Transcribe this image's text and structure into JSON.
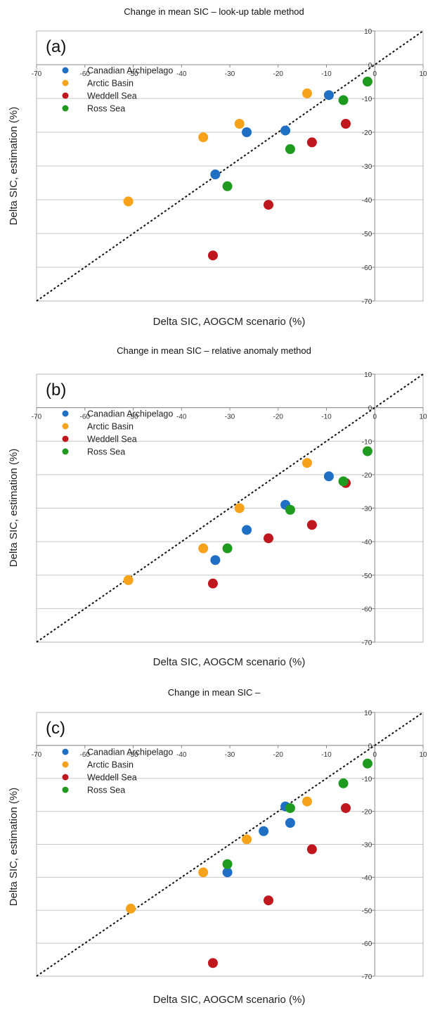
{
  "colors": {
    "canadian": "#1f6fc5",
    "arctic": "#f7a21b",
    "weddell": "#c0161e",
    "ross": "#1e9a1e",
    "grid": "#c8c8c8",
    "frame": "#b4b4b4",
    "diagonal": "#111111"
  },
  "chart_data": [
    {
      "type": "scatter",
      "panel_label": "(a)",
      "title": "Change in mean SIC –  look-up table method",
      "xlabel": "Delta SIC, AOGCM scenario (%)",
      "ylabel": "Delta SIC, estimation (%)",
      "xlim": [
        -70,
        10
      ],
      "ylim": [
        -70,
        10
      ],
      "xticks": [
        "-70",
        "-60",
        "-50",
        "-40",
        "-30",
        "-20",
        "-10",
        "0",
        "10"
      ],
      "yticks": [
        "10",
        "0",
        "-10",
        "-20",
        "-30",
        "-40",
        "-50",
        "-60",
        "-70"
      ],
      "grid": true,
      "legend_position": "upper-left",
      "reference_line": "y = x",
      "series": [
        {
          "name": "Canadian Archipelago",
          "points": [
            [
              -9.5,
              -9
            ],
            [
              -18.5,
              -19.5
            ],
            [
              -26.5,
              -20
            ],
            [
              -33,
              -32.5
            ]
          ]
        },
        {
          "name": "Arctic Basin",
          "points": [
            [
              -14,
              -8.5
            ],
            [
              -28,
              -17.5
            ],
            [
              -35.5,
              -21.5
            ],
            [
              -51,
              -40.5
            ]
          ]
        },
        {
          "name": "Weddell Sea",
          "points": [
            [
              -6,
              -17.5
            ],
            [
              -13,
              -23
            ],
            [
              -22,
              -41.5
            ],
            [
              -33.5,
              -56.5
            ]
          ]
        },
        {
          "name": "Ross Sea",
          "points": [
            [
              -1.5,
              -5
            ],
            [
              -6.5,
              -10.5
            ],
            [
              -17.5,
              -25
            ],
            [
              -30.5,
              -36
            ]
          ]
        }
      ]
    },
    {
      "type": "scatter",
      "panel_label": "(b)",
      "title": "Change in mean SIC –  relative anomaly method",
      "xlabel": "Delta SIC, AOGCM scenario (%)",
      "ylabel": "Delta SIC, estimation (%)",
      "xlim": [
        -70,
        10
      ],
      "ylim": [
        -70,
        10
      ],
      "xticks": [
        "-70",
        "-60",
        "-50",
        "-40",
        "-30",
        "-20",
        "-10",
        "0",
        "10"
      ],
      "yticks": [
        "10",
        "0",
        "-10",
        "-20",
        "-30",
        "-40",
        "-50",
        "-60",
        "-70"
      ],
      "grid": true,
      "legend_position": "upper-left",
      "reference_line": "y = x",
      "series": [
        {
          "name": "Canadian Archipelago",
          "points": [
            [
              -9.5,
              -20.5
            ],
            [
              -18.5,
              -29
            ],
            [
              -26.5,
              -36.5
            ],
            [
              -33,
              -45.5
            ]
          ]
        },
        {
          "name": "Arctic Basin",
          "points": [
            [
              -14,
              -16.5
            ],
            [
              -28,
              -30
            ],
            [
              -35.5,
              -42
            ],
            [
              -51,
              -51.5
            ]
          ]
        },
        {
          "name": "Weddell Sea",
          "points": [
            [
              -6,
              -22.5
            ],
            [
              -13,
              -35
            ],
            [
              -22,
              -39
            ],
            [
              -33.5,
              -52.5
            ]
          ]
        },
        {
          "name": "Ross Sea",
          "points": [
            [
              -1.5,
              -13
            ],
            [
              -6.5,
              -22
            ],
            [
              -17.5,
              -30.5
            ],
            [
              -30.5,
              -42
            ]
          ]
        }
      ]
    },
    {
      "type": "scatter",
      "panel_label": "(c)",
      "title": "Change in mean SIC –",
      "xlabel": "Delta SIC, AOGCM scenario (%)",
      "ylabel": "Delta SIC, estimation (%)",
      "xlim": [
        -70,
        10
      ],
      "ylim": [
        -70,
        10
      ],
      "xticks": [
        "-70",
        "-60",
        "-50",
        "-40",
        "-30",
        "-20",
        "-10",
        "0",
        "10"
      ],
      "yticks": [
        "10",
        "0",
        "-10",
        "-20",
        "-30",
        "-40",
        "-50",
        "-60",
        "-70"
      ],
      "grid": true,
      "legend_position": "upper-left",
      "reference_line": "y = x",
      "series": [
        {
          "name": "Canadian Archipelago",
          "points": [
            [
              -18.5,
              -18.5
            ],
            [
              -17.5,
              -23.5
            ],
            [
              -23,
              -26
            ],
            [
              -30.5,
              -38.5
            ]
          ]
        },
        {
          "name": "Arctic Basin",
          "points": [
            [
              -14,
              -17
            ],
            [
              -26.5,
              -28.5
            ],
            [
              -35.5,
              -38.5
            ],
            [
              -50.5,
              -49.5
            ]
          ]
        },
        {
          "name": "Weddell Sea",
          "points": [
            [
              -6,
              -19
            ],
            [
              -13,
              -31.5
            ],
            [
              -22,
              -47
            ],
            [
              -33.5,
              -66
            ]
          ]
        },
        {
          "name": "Ross Sea",
          "points": [
            [
              -1.5,
              -5.5
            ],
            [
              -6.5,
              -11.5
            ],
            [
              -17.5,
              -19
            ],
            [
              -30.5,
              -36
            ]
          ]
        }
      ]
    }
  ]
}
